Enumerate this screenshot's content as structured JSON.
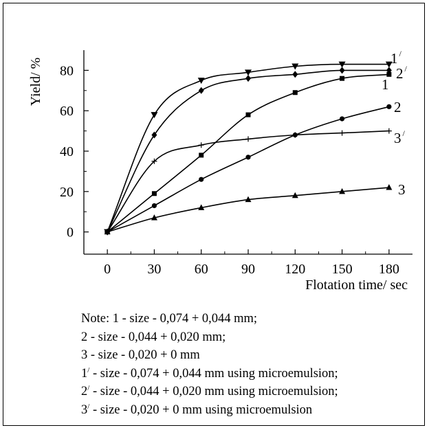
{
  "chart_data": {
    "type": "line",
    "xlabel": "Flotation time/ sec",
    "ylabel": "Yield/ %",
    "xlim": [
      -15,
      195
    ],
    "ylim": [
      -11,
      90
    ],
    "x_ticks": [
      0,
      30,
      60,
      90,
      120,
      150,
      180
    ],
    "y_ticks": [
      0,
      20,
      40,
      60,
      80
    ],
    "grid": false,
    "series": [
      {
        "name": "1",
        "prime": false,
        "marker": "square",
        "x": [
          0,
          30,
          60,
          90,
          120,
          150,
          180
        ],
        "values": [
          0,
          19,
          38,
          58,
          69,
          76,
          78
        ]
      },
      {
        "name": "2",
        "prime": false,
        "marker": "circle",
        "x": [
          0,
          30,
          60,
          90,
          120,
          150,
          180
        ],
        "values": [
          0,
          13,
          26,
          37,
          48,
          56,
          62
        ]
      },
      {
        "name": "3",
        "prime": false,
        "marker": "triangle-up",
        "x": [
          0,
          30,
          60,
          90,
          120,
          150,
          180
        ],
        "values": [
          0,
          7,
          12,
          16,
          18,
          20,
          22
        ]
      },
      {
        "name": "1",
        "prime": true,
        "marker": "triangle-down",
        "x": [
          0,
          30,
          60,
          90,
          120,
          150,
          180
        ],
        "values": [
          0,
          58,
          75,
          79,
          82,
          83,
          83
        ]
      },
      {
        "name": "2",
        "prime": true,
        "marker": "diamond",
        "x": [
          0,
          30,
          60,
          90,
          120,
          150,
          180
        ],
        "values": [
          0,
          48,
          70,
          76,
          78,
          80,
          80
        ]
      },
      {
        "name": "3",
        "prime": true,
        "marker": "plus",
        "x": [
          0,
          30,
          60,
          90,
          120,
          150,
          180
        ],
        "values": [
          0,
          35,
          43,
          46,
          48,
          49,
          50
        ]
      }
    ]
  },
  "notes": [
    {
      "num": "1",
      "prime": false,
      "text": " - size - 0,074 + 0,044 mm;",
      "prefix": "Note: "
    },
    {
      "num": "2",
      "prime": false,
      "text": " - size - 0,044 + 0,020 mm;",
      "prefix": ""
    },
    {
      "num": "3",
      "prime": false,
      "text": " - size - 0,020 + 0 mm",
      "prefix": ""
    },
    {
      "num": "1",
      "prime": true,
      "text": " - size - 0,074 + 0,044 mm using microemulsion;",
      "prefix": ""
    },
    {
      "num": "2",
      "prime": true,
      "text": " - size - 0,044 + 0,020 mm using microemulsion;",
      "prefix": ""
    },
    {
      "num": "3",
      "prime": true,
      "text": " - size - 0,020 + 0 mm using microemulsion",
      "prefix": ""
    }
  ],
  "prime_mark": "/"
}
